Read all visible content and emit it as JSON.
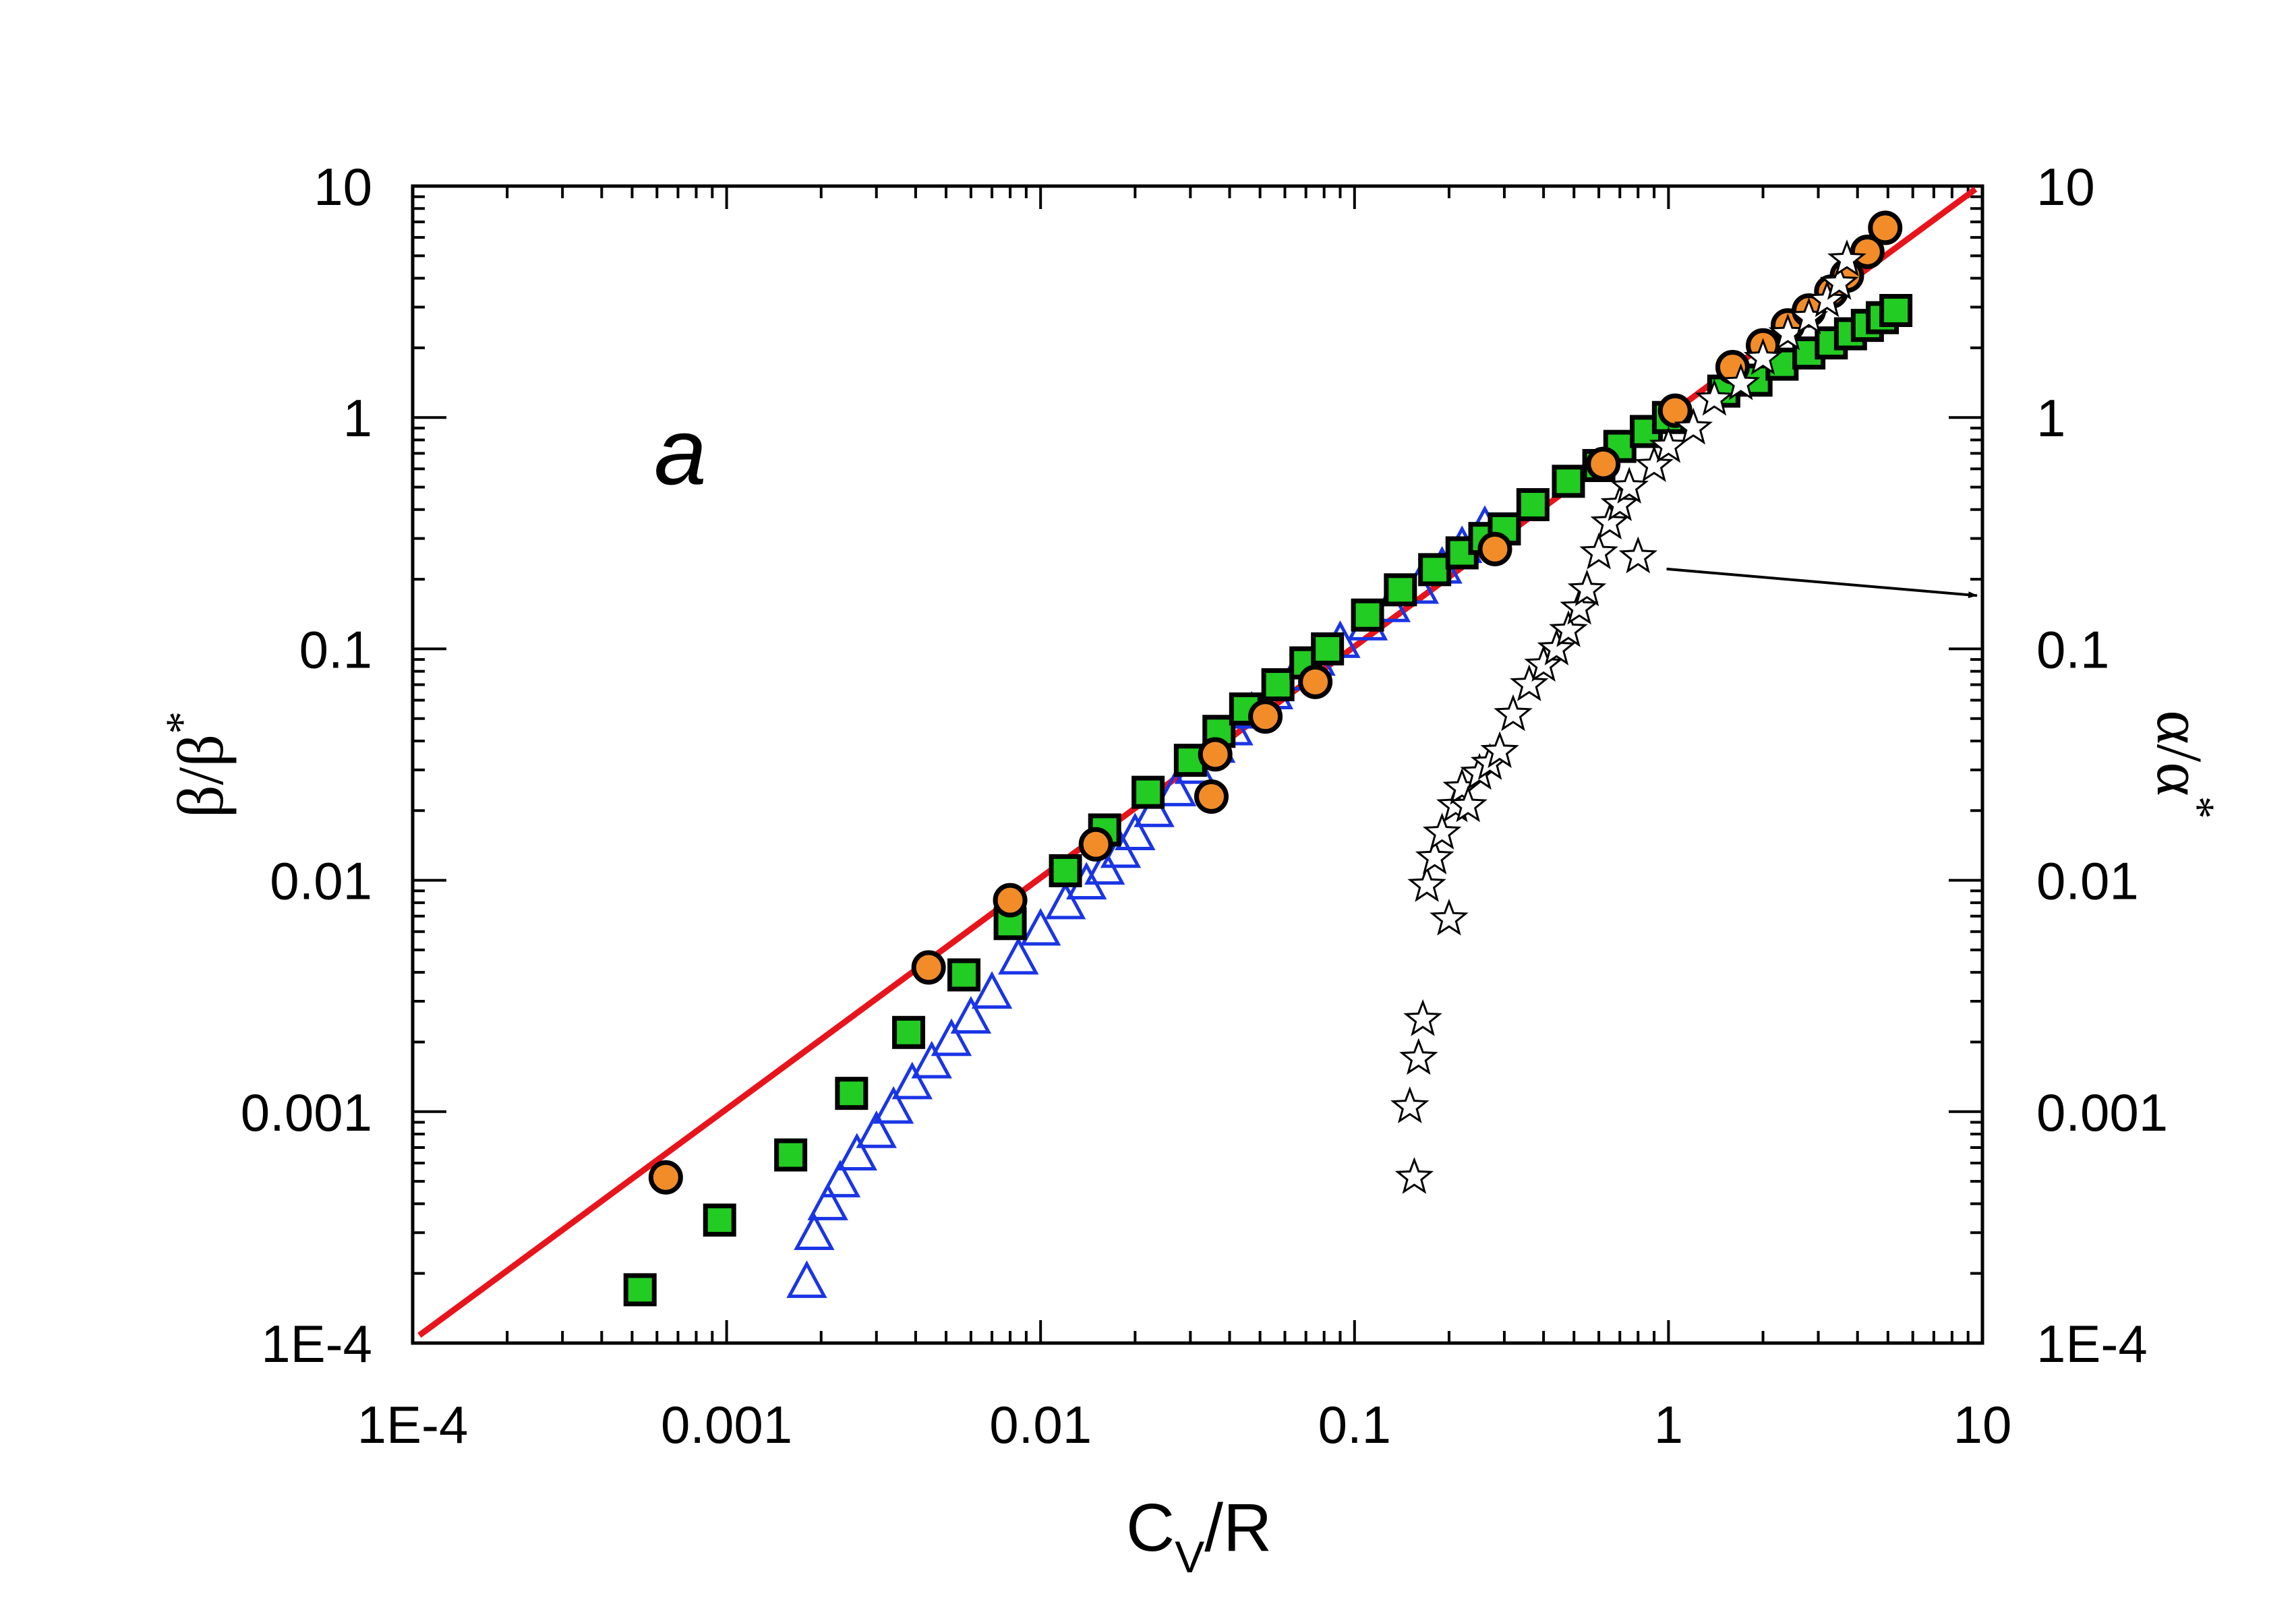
{
  "chart_data": {
    "type": "scatter",
    "panel_label": "a",
    "xscale": "log",
    "yscale": "log",
    "xlim": [
      0.0001,
      10
    ],
    "ylim": [
      0.0001,
      10
    ],
    "xlabel": {
      "main": "C",
      "sub": "V",
      "tail": "/R"
    },
    "ylabel_left": {
      "main": "β/β",
      "sup": "*"
    },
    "ylabel_right": {
      "main": "α/α",
      "sup": "*"
    },
    "x_tick_labels": [
      "1E-4",
      "0.001",
      "0.01",
      "0.1",
      "1",
      "10"
    ],
    "y_tick_labels": [
      "1E-4",
      "0.001",
      "0.01",
      "0.1",
      "1",
      "10"
    ],
    "y_tick_labels_right": [
      "1E-4",
      "0.001",
      "0.01",
      "0.1",
      "1",
      "10"
    ],
    "colors": {
      "fit_line": "#e8141c",
      "circle_fill": "#f28c28",
      "square_fill": "#22cc22",
      "triangle_stroke": "#1a35e6",
      "star_stroke": "#000000",
      "axis": "#000000"
    },
    "series": [
      {
        "name": "fit",
        "kind": "line",
        "x": [
          0.000105,
          9.5
        ],
        "y": [
          0.000108,
          9.7
        ]
      },
      {
        "name": "orange circles",
        "kind": "circle",
        "x": [
          0.00064,
          0.0044,
          0.008,
          0.015,
          0.035,
          0.036,
          0.052,
          0.075,
          0.28,
          0.62,
          1.05,
          1.6,
          2.0,
          2.4,
          2.8,
          3.3,
          3.7,
          4.3,
          4.9
        ],
        "y": [
          0.00052,
          0.0042,
          0.0082,
          0.0143,
          0.023,
          0.035,
          0.051,
          0.072,
          0.27,
          0.63,
          1.07,
          1.65,
          2.05,
          2.5,
          2.9,
          3.5,
          4.1,
          5.2,
          6.6
        ]
      },
      {
        "name": "green squares",
        "kind": "square",
        "x": [
          0.00053,
          0.00095,
          0.0016,
          0.0025,
          0.0038,
          0.0057,
          0.008,
          0.012,
          0.016,
          0.022,
          0.03,
          0.037,
          0.045,
          0.057,
          0.07,
          0.082,
          0.11,
          0.14,
          0.18,
          0.22,
          0.26,
          0.3,
          0.37,
          0.48,
          0.6,
          0.7,
          0.85,
          1.0,
          1.5,
          1.9,
          2.3,
          2.8,
          3.3,
          3.8,
          4.3,
          4.8,
          5.3
        ],
        "y": [
          0.00017,
          0.00034,
          0.00065,
          0.0012,
          0.0022,
          0.0039,
          0.0065,
          0.011,
          0.0165,
          0.024,
          0.033,
          0.044,
          0.055,
          0.07,
          0.087,
          0.1,
          0.14,
          0.18,
          0.22,
          0.26,
          0.3,
          0.33,
          0.42,
          0.53,
          0.62,
          0.75,
          0.87,
          1.0,
          1.3,
          1.45,
          1.7,
          1.9,
          2.1,
          2.3,
          2.5,
          2.7,
          2.9
        ]
      },
      {
        "name": "blue triangles",
        "kind": "triangle",
        "x": [
          0.0018,
          0.0019,
          0.0021,
          0.0023,
          0.0026,
          0.003,
          0.0034,
          0.0039,
          0.0045,
          0.0052,
          0.006,
          0.007,
          0.0085,
          0.01,
          0.012,
          0.014,
          0.016,
          0.018,
          0.02,
          0.023,
          0.027,
          0.031,
          0.036,
          0.041,
          0.047,
          0.055,
          0.065,
          0.075,
          0.09,
          0.11,
          0.13,
          0.16,
          0.19,
          0.22,
          0.26
        ],
        "y": [
          0.00018,
          0.00029,
          0.00039,
          0.00049,
          0.00064,
          0.0008,
          0.00102,
          0.0013,
          0.0016,
          0.002,
          0.0025,
          0.0032,
          0.0045,
          0.006,
          0.0078,
          0.0095,
          0.011,
          0.013,
          0.0155,
          0.0195,
          0.024,
          0.03,
          0.037,
          0.044,
          0.052,
          0.063,
          0.076,
          0.088,
          0.105,
          0.125,
          0.15,
          0.18,
          0.22,
          0.27,
          0.33
        ]
      },
      {
        "name": "stars (α/α*)",
        "kind": "star",
        "axis": "right",
        "x": [
          0.15,
          0.155,
          0.16,
          0.165,
          0.17,
          0.18,
          0.19,
          0.2,
          0.21,
          0.22,
          0.23,
          0.25,
          0.27,
          0.29,
          0.32,
          0.36,
          0.4,
          0.44,
          0.48,
          0.52,
          0.55,
          0.6,
          0.65,
          0.7,
          0.75,
          0.8,
          0.9,
          1.0,
          1.2,
          1.4,
          1.7,
          2.0,
          2.4,
          2.8,
          3.2,
          3.5,
          3.7
        ],
        "y": [
          0.00105,
          0.00052,
          0.0017,
          0.0025,
          0.0095,
          0.0125,
          0.016,
          0.0068,
          0.021,
          0.025,
          0.021,
          0.029,
          0.032,
          0.036,
          0.052,
          0.07,
          0.085,
          0.1,
          0.12,
          0.15,
          0.18,
          0.26,
          0.35,
          0.42,
          0.5,
          0.25,
          0.62,
          0.75,
          0.9,
          1.2,
          1.4,
          1.8,
          2.3,
          2.7,
          3.2,
          3.8,
          4.8
        ]
      }
    ],
    "annotation": {
      "kind": "arrow",
      "from": [
        0.85,
        0.24
      ],
      "to_axis": "right",
      "to_y": 0.17
    }
  }
}
